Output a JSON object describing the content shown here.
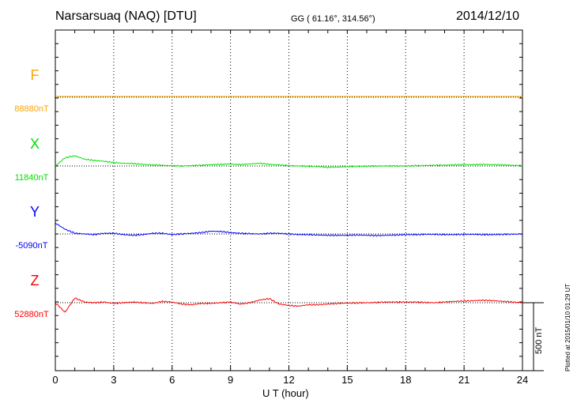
{
  "header": {
    "station": "Narsarsuaq (NAQ)  [DTU]",
    "coords": "GG ( 61.16°, 314.56°)",
    "date": "2014/12/10"
  },
  "footer": {
    "plotted": "Plotted at 2015/01/10 01:29 UT",
    "scale_label": "500 nT"
  },
  "chart_data": {
    "type": "line",
    "xlabel": "U T (hour)",
    "xlim": [
      0,
      24
    ],
    "xticks": [
      "0",
      "3",
      "6",
      "9",
      "12",
      "15",
      "18",
      "21",
      "24"
    ],
    "scale_bar_nT": 500,
    "grid": "vertical dotted every 3 h",
    "x_step_hours": 0.5,
    "series": [
      {
        "name": "F",
        "baseline": "88880nT",
        "color": "#ffa500",
        "values": [
          6,
          6,
          6,
          6,
          6,
          6,
          6,
          6,
          6,
          6,
          6,
          6,
          6,
          6,
          6,
          6,
          6,
          6,
          6,
          6,
          6,
          6,
          6,
          6,
          6,
          6,
          6,
          6,
          6,
          6,
          6,
          6,
          6,
          6,
          6,
          6,
          6,
          6,
          6,
          6,
          6,
          6,
          6,
          6,
          6,
          6,
          6,
          6,
          6
        ]
      },
      {
        "name": "X",
        "baseline": "11840nT",
        "color": "#00e000",
        "values": [
          0,
          60,
          75,
          50,
          40,
          35,
          25,
          20,
          18,
          12,
          8,
          5,
          2,
          0,
          3,
          5,
          10,
          12,
          15,
          10,
          15,
          20,
          12,
          8,
          3,
          0,
          -2,
          -5,
          -10,
          -8,
          -5,
          -3,
          -2,
          -1,
          0,
          0,
          0,
          2,
          4,
          5,
          6,
          8,
          10,
          10,
          12,
          10,
          8,
          5,
          3
        ]
      },
      {
        "name": "Y",
        "baseline": "-5090nT",
        "color": "#0000ff",
        "values": [
          80,
          35,
          5,
          0,
          -5,
          5,
          5,
          -5,
          -10,
          -5,
          5,
          5,
          -5,
          0,
          5,
          10,
          20,
          18,
          10,
          5,
          2,
          0,
          5,
          5,
          0,
          -5,
          -5,
          -8,
          -10,
          -10,
          -10,
          -8,
          -10,
          -12,
          -10,
          -8,
          -5,
          -5,
          -3,
          -3,
          -5,
          -5,
          -3,
          -3,
          -5,
          -5,
          -3,
          -2,
          0
        ]
      },
      {
        "name": "Z",
        "baseline": "52880nT",
        "color": "#ff0000",
        "values": [
          0,
          -70,
          35,
          5,
          0,
          5,
          -5,
          0,
          5,
          0,
          -5,
          10,
          5,
          -10,
          -15,
          -5,
          -5,
          0,
          5,
          -10,
          0,
          20,
          30,
          -10,
          -20,
          -25,
          -15,
          -15,
          -10,
          -5,
          -3,
          -2,
          0,
          2,
          5,
          5,
          5,
          5,
          2,
          0,
          5,
          10,
          12,
          15,
          18,
          15,
          10,
          5,
          0
        ]
      }
    ]
  }
}
